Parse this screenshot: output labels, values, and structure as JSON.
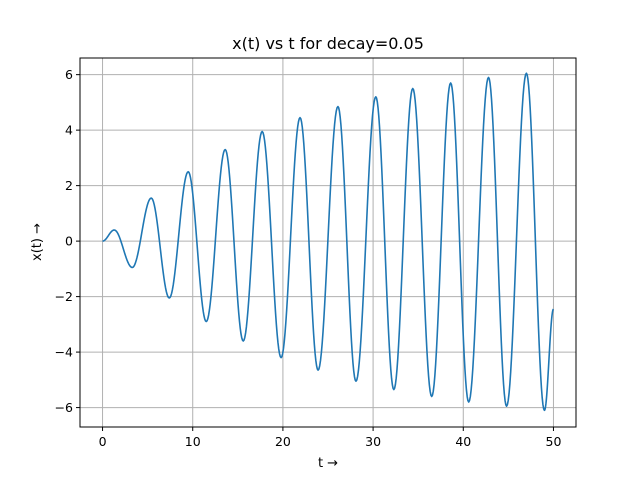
{
  "chart_data": {
    "type": "line",
    "title": "x(t) vs t for decay=0.05",
    "xlabel": "t →",
    "ylabel": "x(t) →",
    "xlim": [
      -2.5,
      52.5
    ],
    "ylim": [
      -6.7,
      6.6
    ],
    "grid": true,
    "x_ticks": [
      0,
      10,
      20,
      30,
      40,
      50
    ],
    "x_tick_labels": [
      "0",
      "10",
      "20",
      "30",
      "40",
      "50"
    ],
    "y_ticks": [
      -6,
      -4,
      -2,
      0,
      2,
      4,
      6
    ],
    "y_tick_labels": [
      "−6",
      "−4",
      "−2",
      "0",
      "2",
      "4",
      "6"
    ],
    "series": [
      {
        "color": "#1f77b4",
        "x": [
          0,
          1.3,
          3.3,
          5.4,
          7.4,
          9.5,
          11.5,
          13.6,
          15.6,
          17.7,
          19.8,
          21.9,
          23.9,
          26.1,
          28.1,
          30.3,
          32.3,
          34.4,
          36.5,
          38.6,
          40.6,
          42.8,
          44.8,
          47.0,
          49.0,
          50.0
        ],
        "y": [
          0,
          0.4,
          -0.95,
          1.55,
          -2.05,
          2.5,
          -2.9,
          3.3,
          -3.6,
          3.95,
          -4.2,
          4.45,
          -4.65,
          4.85,
          -5.05,
          5.2,
          -5.35,
          5.5,
          -5.6,
          5.7,
          -5.8,
          5.9,
          -5.95,
          6.05,
          -6.1,
          -2.45
        ]
      }
    ]
  }
}
